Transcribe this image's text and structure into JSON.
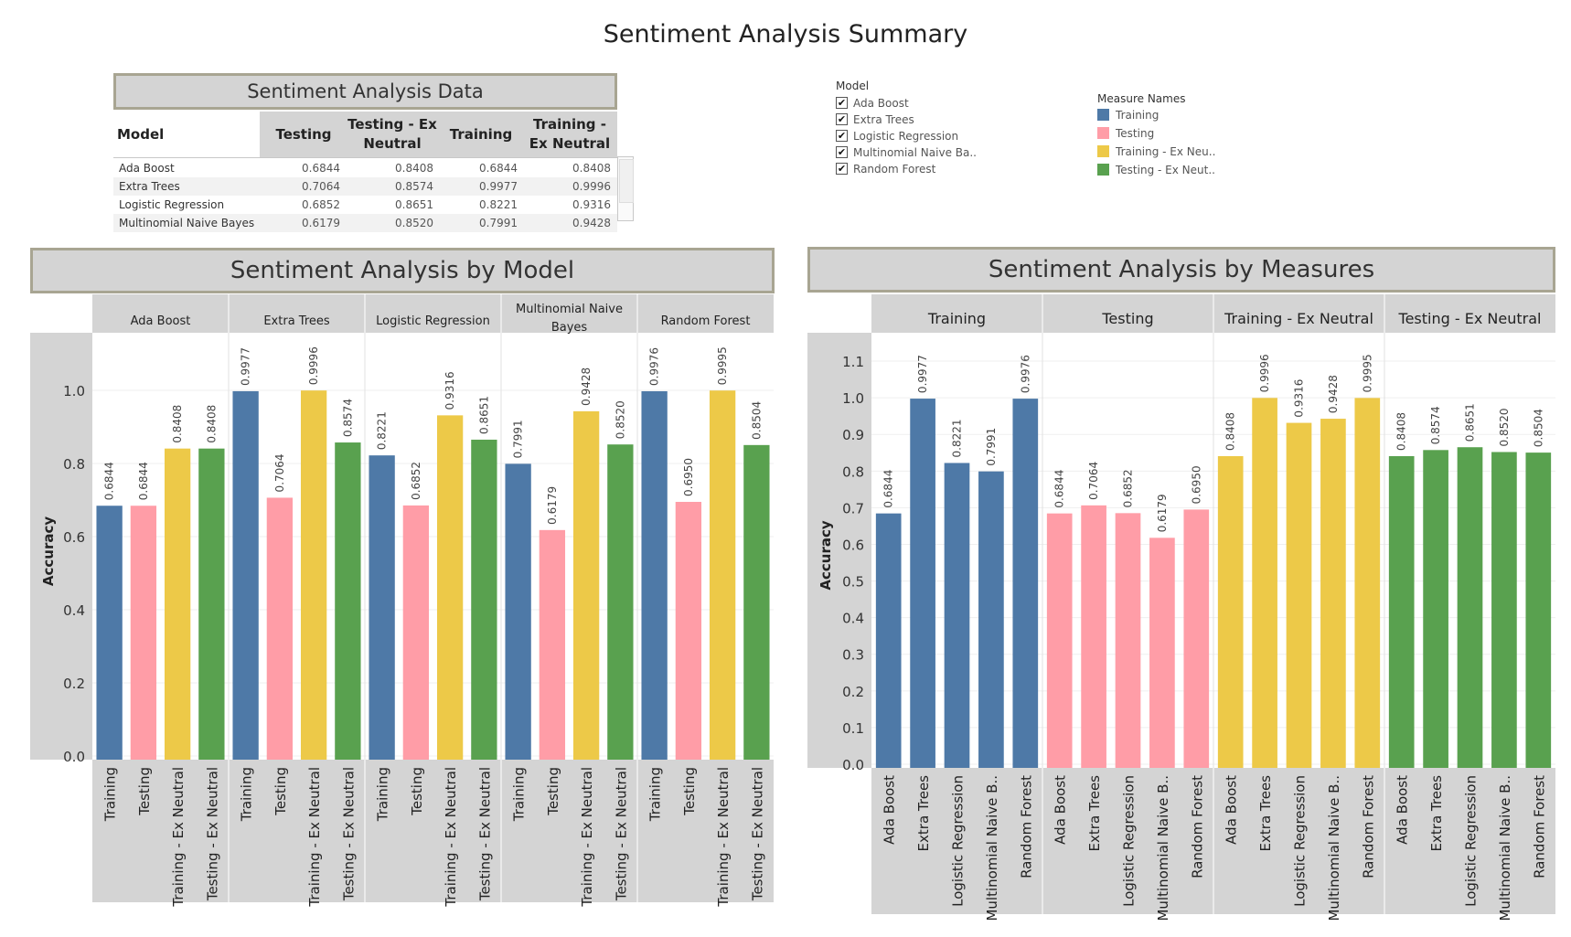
{
  "title": "Sentiment Analysis Summary",
  "table": {
    "heading": "Sentiment Analysis Data",
    "columns": [
      "Model",
      "Testing",
      "Testing - Ex Neutral",
      "Training",
      "Training - Ex Neutral"
    ],
    "columns_display": [
      "Model",
      "Testing",
      "Testing - Ex\nNeutral",
      "Training",
      "Training -\nEx Neutral"
    ],
    "rows": [
      {
        "model": "Ada Boost",
        "testing": "0.6844",
        "testing_ex": "0.8408",
        "training": "0.6844",
        "training_ex": "0.8408"
      },
      {
        "model": "Extra Trees",
        "testing": "0.7064",
        "testing_ex": "0.8574",
        "training": "0.9977",
        "training_ex": "0.9996"
      },
      {
        "model": "Logistic Regression",
        "testing": "0.6852",
        "testing_ex": "0.8651",
        "training": "0.8221",
        "training_ex": "0.9316"
      },
      {
        "model": "Multinomial Naive Bayes",
        "testing": "0.6179",
        "testing_ex": "0.8520",
        "training": "0.7991",
        "training_ex": "0.9428"
      }
    ]
  },
  "model_legend": {
    "title": "Model",
    "items": [
      "Ada Boost",
      "Extra Trees",
      "Logistic Regression",
      "Multinomial Naive Ba..",
      "Random Forest"
    ]
  },
  "measure_legend": {
    "title": "Measure Names",
    "items": [
      {
        "label": "Training",
        "color": "#4e79a7"
      },
      {
        "label": "Testing",
        "color": "#ff9da7"
      },
      {
        "label": "Training - Ex Neu..",
        "color": "#edc948"
      },
      {
        "label": "Testing - Ex Neut..",
        "color": "#59a14f"
      }
    ]
  },
  "chart_data": [
    {
      "type": "bar",
      "title": "Sentiment Analysis by Model",
      "ylabel": "Accuracy",
      "ylim": [
        0,
        1.15
      ],
      "yticks": [
        0.0,
        0.2,
        0.4,
        0.6,
        0.8,
        1.0
      ],
      "groups": [
        "Ada Boost",
        "Extra Trees",
        "Logistic Regression",
        "Multinomial Naive Bayes",
        "Random Forest"
      ],
      "group_labels": [
        "Ada Boost",
        "Extra Trees",
        "Logistic Regression",
        "Multinomial Naive\nBayes",
        "Random Forest"
      ],
      "measures": [
        "Training",
        "Testing",
        "Training - Ex Neutral",
        "Testing - Ex Neutral"
      ],
      "values": [
        [
          0.6844,
          0.6844,
          0.8408,
          0.8408
        ],
        [
          0.9977,
          0.7064,
          0.9996,
          0.8574
        ],
        [
          0.8221,
          0.6852,
          0.9316,
          0.8651
        ],
        [
          0.7991,
          0.6179,
          0.9428,
          0.852
        ],
        [
          0.9976,
          0.695,
          0.9995,
          0.8504
        ]
      ],
      "labels": [
        [
          "0.6844",
          "0.6844",
          "0.8408",
          "0.8408"
        ],
        [
          "0.9977",
          "0.7064",
          "0.9996",
          "0.8574"
        ],
        [
          "0.8221",
          "0.6852",
          "0.9316",
          "0.8651"
        ],
        [
          "0.7991",
          "0.6179",
          "0.9428",
          "0.8520"
        ],
        [
          "0.9976",
          "0.6950",
          "0.9995",
          "0.8504"
        ]
      ],
      "grid": true
    },
    {
      "type": "bar",
      "title": "Sentiment Analysis by Measures",
      "ylabel": "Accuracy",
      "ylim": [
        0,
        1.17
      ],
      "yticks": [
        0.0,
        0.1,
        0.2,
        0.3,
        0.4,
        0.5,
        0.6,
        0.7,
        0.8,
        0.9,
        1.0,
        1.1
      ],
      "groups": [
        "Training",
        "Testing",
        "Training - Ex Neutral",
        "Testing - Ex Neutral"
      ],
      "models": [
        "Ada Boost",
        "Extra Trees",
        "Logistic Regression",
        "Multinomial Naive B..",
        "Random Forest"
      ],
      "values": [
        [
          0.6844,
          0.9977,
          0.8221,
          0.7991,
          0.9976
        ],
        [
          0.6844,
          0.7064,
          0.6852,
          0.6179,
          0.695
        ],
        [
          0.8408,
          0.9996,
          0.9316,
          0.9428,
          0.9995
        ],
        [
          0.8408,
          0.8574,
          0.8651,
          0.852,
          0.8504
        ]
      ],
      "labels": [
        [
          "0.6844",
          "0.9977",
          "0.8221",
          "0.7991",
          "0.9976"
        ],
        [
          "0.6844",
          "0.7064",
          "0.6852",
          "0.6179",
          "0.6950"
        ],
        [
          "0.8408",
          "0.9996",
          "0.9316",
          "0.9428",
          "0.9995"
        ],
        [
          "0.8408",
          "0.8574",
          "0.8651",
          "0.8520",
          "0.8504"
        ]
      ],
      "grid": true
    }
  ]
}
